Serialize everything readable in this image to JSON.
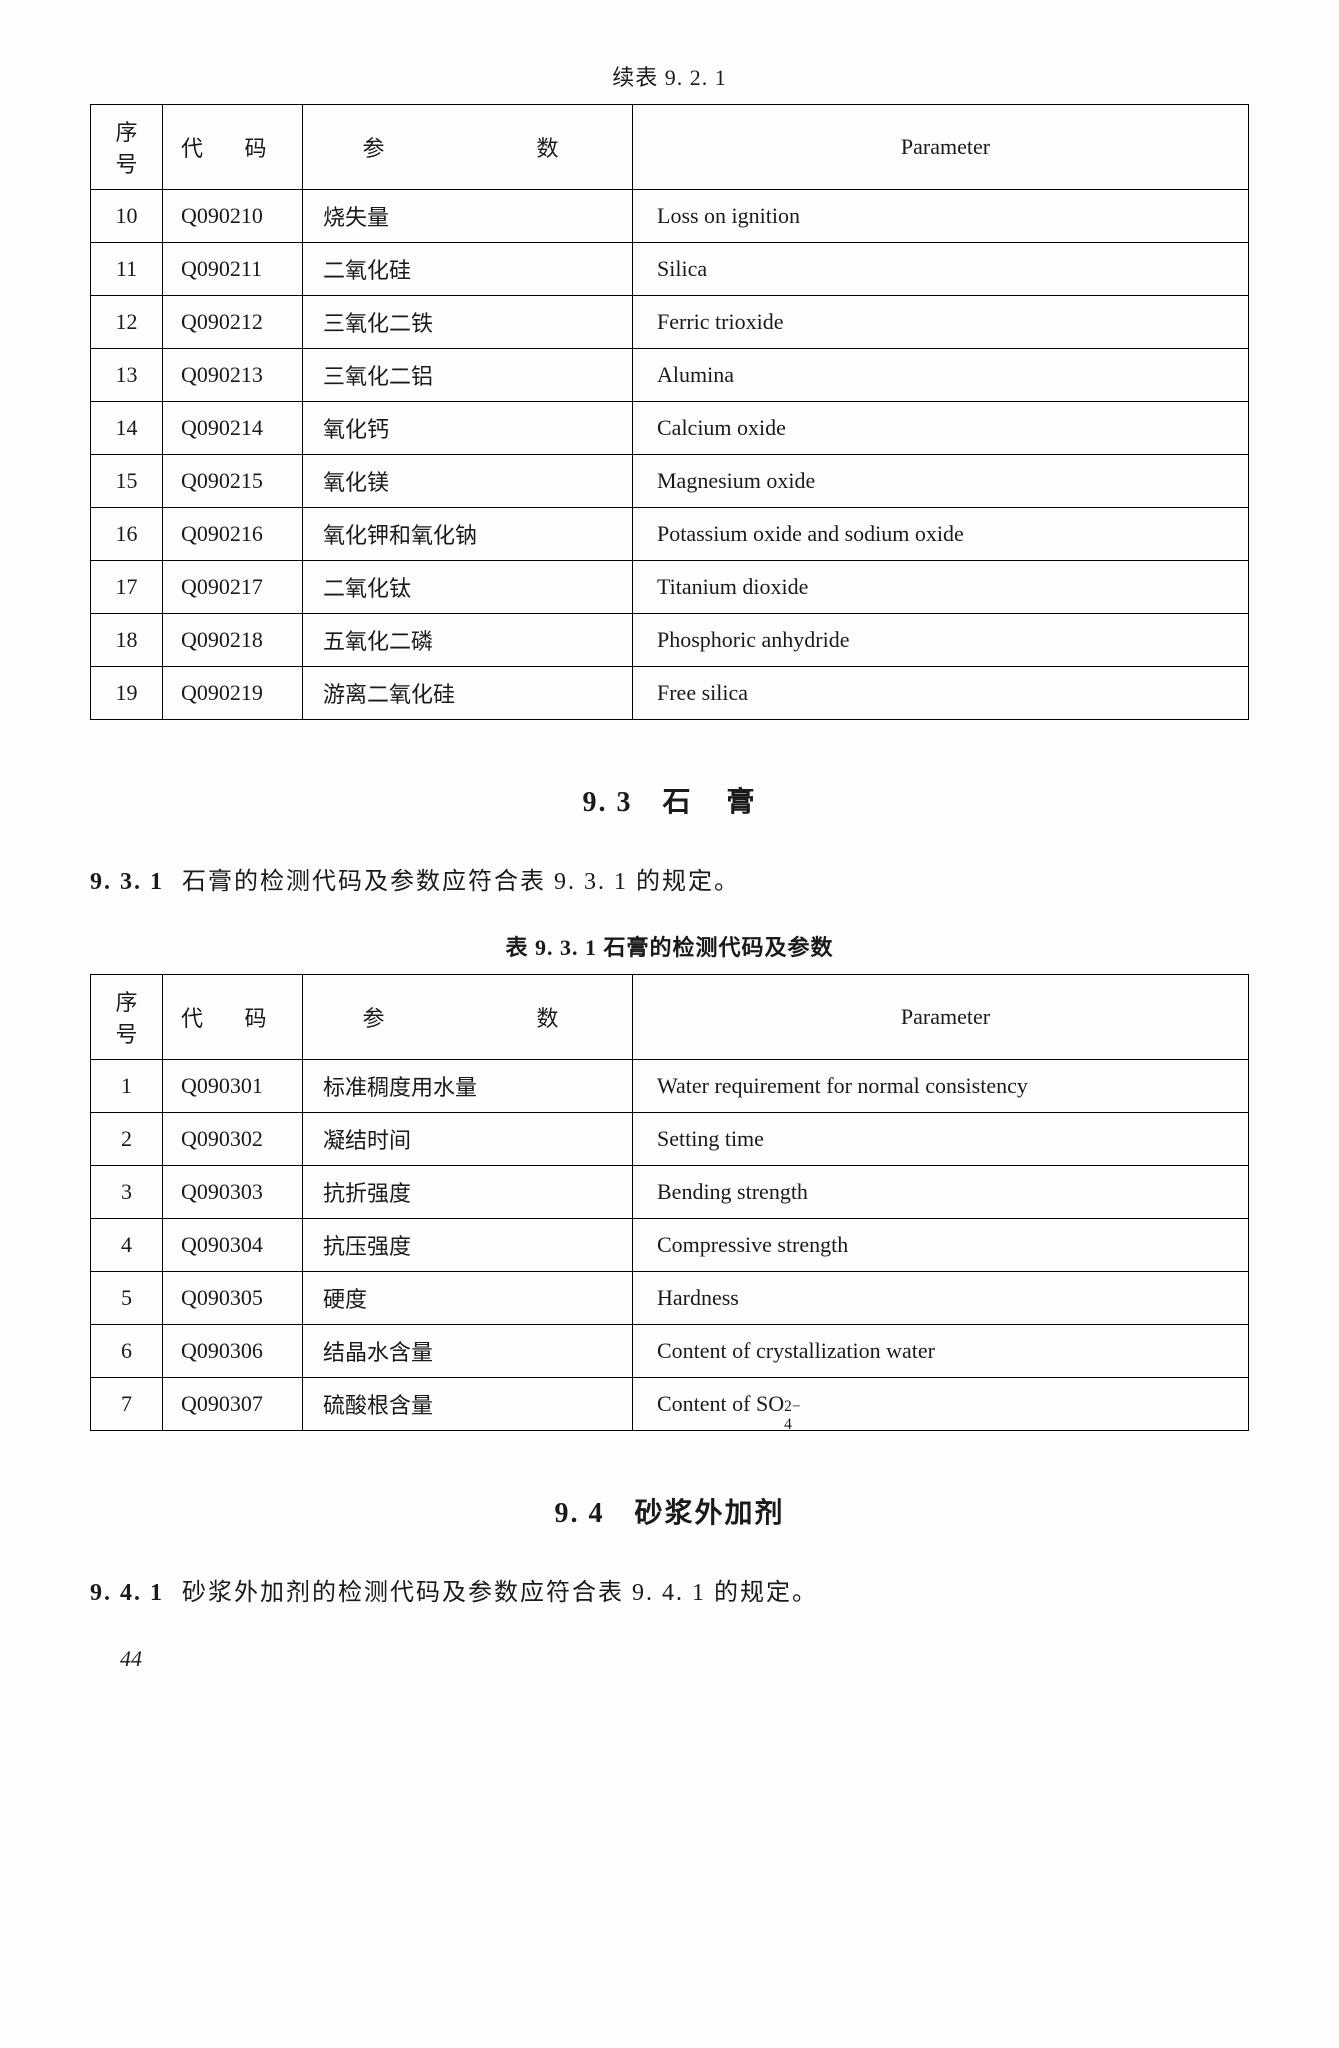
{
  "table1": {
    "caption": "续表 9. 2. 1",
    "headers": {
      "seq": "序号",
      "code": "代 码",
      "param_cn": "参    数",
      "param_en": "Parameter"
    },
    "rows": [
      {
        "seq": "10",
        "code": "Q090210",
        "cn": "烧失量",
        "en": "Loss on ignition"
      },
      {
        "seq": "11",
        "code": "Q090211",
        "cn": "二氧化硅",
        "en": "Silica"
      },
      {
        "seq": "12",
        "code": "Q090212",
        "cn": "三氧化二铁",
        "en": "Ferric trioxide"
      },
      {
        "seq": "13",
        "code": "Q090213",
        "cn": "三氧化二铝",
        "en": "Alumina"
      },
      {
        "seq": "14",
        "code": "Q090214",
        "cn": "氧化钙",
        "en": "Calcium oxide"
      },
      {
        "seq": "15",
        "code": "Q090215",
        "cn": "氧化镁",
        "en": "Magnesium oxide"
      },
      {
        "seq": "16",
        "code": "Q090216",
        "cn": "氧化钾和氧化钠",
        "en": "Potassium oxide and sodium oxide"
      },
      {
        "seq": "17",
        "code": "Q090217",
        "cn": "二氧化钛",
        "en": "Titanium dioxide"
      },
      {
        "seq": "18",
        "code": "Q090218",
        "cn": "五氧化二磷",
        "en": "Phosphoric anhydride"
      },
      {
        "seq": "19",
        "code": "Q090219",
        "cn": "游离二氧化硅",
        "en": "Free silica"
      }
    ]
  },
  "section93": {
    "heading_num": "9. 3",
    "heading_title": "石    膏",
    "para_num": "9. 3. 1",
    "para_text": "石膏的检测代码及参数应符合表 9. 3. 1 的规定。"
  },
  "table2": {
    "caption": "表 9. 3. 1  石膏的检测代码及参数",
    "headers": {
      "seq": "序号",
      "code": "代 码",
      "param_cn": "参    数",
      "param_en": "Parameter"
    },
    "rows": [
      {
        "seq": "1",
        "code": "Q090301",
        "cn": "标准稠度用水量",
        "en": "    Water requirement for normal consistency"
      },
      {
        "seq": "2",
        "code": "Q090302",
        "cn": "凝结时间",
        "en": "Setting time"
      },
      {
        "seq": "3",
        "code": "Q090303",
        "cn": "抗折强度",
        "en": "Bending strength"
      },
      {
        "seq": "4",
        "code": "Q090304",
        "cn": "抗压强度",
        "en": "Compressive strength"
      },
      {
        "seq": "5",
        "code": "Q090305",
        "cn": "硬度",
        "en": "Hardness"
      },
      {
        "seq": "6",
        "code": "Q090306",
        "cn": "结晶水含量",
        "en": "Content of crystallization water"
      },
      {
        "seq": "7",
        "code": "Q090307",
        "cn": "硫酸根含量",
        "en_html": "Content of SO<span class=\"sup-sub\"><span class=\"top\">2−</span><span class=\"bot\">4</span></span>"
      }
    ]
  },
  "section94": {
    "heading_num": "9. 4",
    "heading_title": "砂浆外加剂",
    "para_num": "9. 4. 1",
    "para_text": "砂浆外加剂的检测代码及参数应符合表 9. 4. 1 的规定。"
  },
  "page_number": "44"
}
